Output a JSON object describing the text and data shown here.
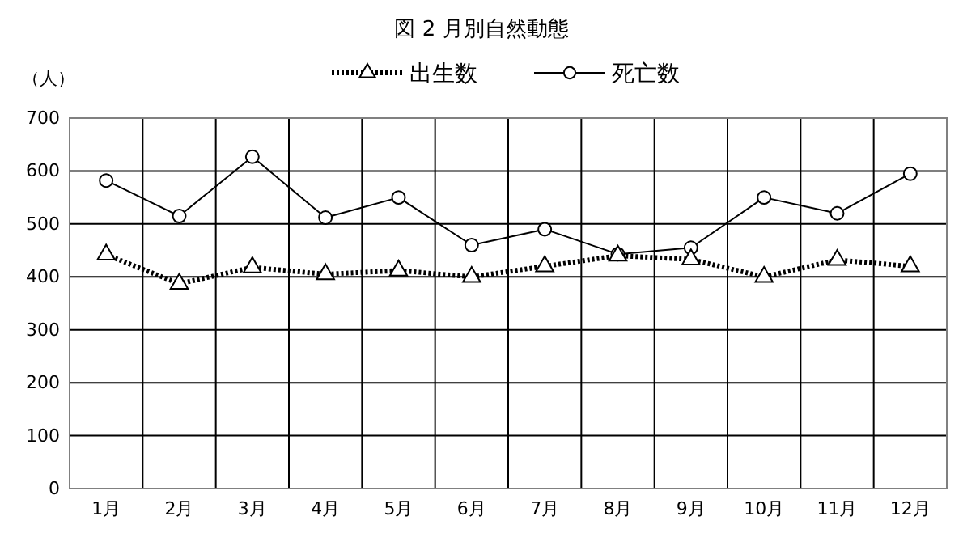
{
  "chart_data": {
    "type": "line",
    "title": "図 2  月別自然動態",
    "ylabel": "（人）",
    "categories": [
      "1月",
      "2月",
      "3月",
      "4月",
      "5月",
      "6月",
      "7月",
      "8月",
      "9月",
      "10月",
      "11月",
      "12月"
    ],
    "series": [
      {
        "name": "出生数",
        "color": "#000000",
        "marker": "triangle",
        "line_style": "dotted",
        "values": [
          442,
          387,
          418,
          405,
          412,
          400,
          420,
          440,
          433,
          400,
          432,
          420
        ]
      },
      {
        "name": "死亡数",
        "color": "#000000",
        "marker": "circle",
        "line_style": "solid",
        "values": [
          582,
          515,
          627,
          512,
          550,
          460,
          490,
          443,
          455,
          550,
          520,
          595
        ]
      }
    ],
    "ylim": [
      0,
      700
    ],
    "yticks": [
      0,
      100,
      200,
      300,
      400,
      500,
      600,
      700
    ],
    "grid": true,
    "legend": "top"
  }
}
